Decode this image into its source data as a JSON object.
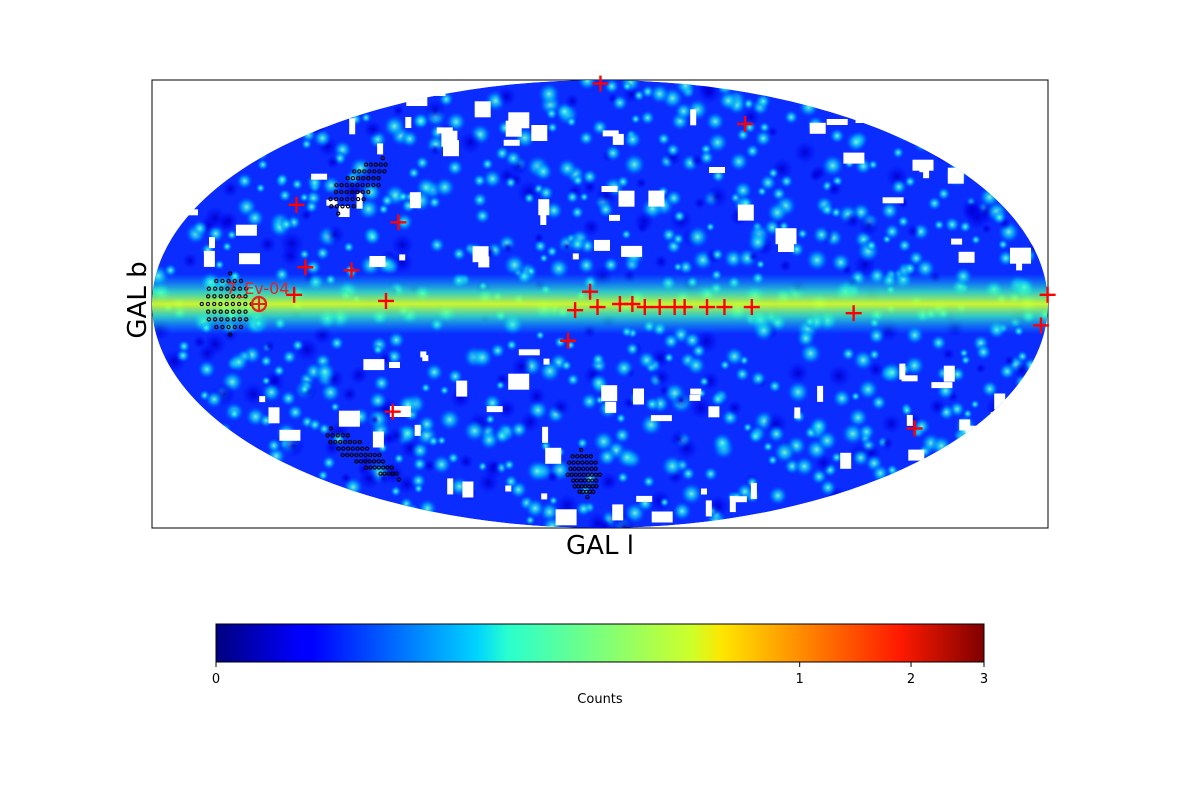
{
  "chart_data": {
    "type": "heatmap",
    "projection": "mollweide",
    "coordinate_system": "galactic",
    "xlabel": "GAL l",
    "ylabel": "GAL b",
    "colormap": "jet",
    "colorbar": {
      "label": "Counts",
      "scale": "nonlinear",
      "tick_labels": [
        "0",
        "1",
        "2",
        "3"
      ],
      "tick_values": [
        0,
        1,
        2,
        3
      ],
      "tick_fraction": [
        0.0,
        0.76,
        0.905,
        1.0
      ]
    },
    "frame": true,
    "grid": false,
    "sources": [
      {
        "l": -1,
        "b": 86
      },
      {
        "l": -98,
        "b": 64
      },
      {
        "l": 136,
        "b": 33
      },
      {
        "l": 87,
        "b": 27
      },
      {
        "l": 120,
        "b": 12
      },
      {
        "l": 101,
        "b": 11
      },
      {
        "l": 123,
        "b": 3
      },
      {
        "l": 86,
        "b": 1
      },
      {
        "l": 4,
        "b": 4
      },
      {
        "l": 10,
        "b": -2
      },
      {
        "l": 1,
        "b": -1
      },
      {
        "l": -8,
        "b": 0
      },
      {
        "l": -13,
        "b": 0
      },
      {
        "l": -18,
        "b": -1
      },
      {
        "l": -24,
        "b": -1
      },
      {
        "l": -30,
        "b": -1
      },
      {
        "l": -34,
        "b": -1
      },
      {
        "l": -43,
        "b": -1
      },
      {
        "l": -50,
        "b": -1
      },
      {
        "l": -61,
        "b": -1
      },
      {
        "l": -102,
        "b": -3
      },
      {
        "l": -180,
        "b": 3
      },
      {
        "l": 13,
        "b": -12
      },
      {
        "l": 95,
        "b": -36
      },
      {
        "l": -178,
        "b": -7
      },
      {
        "l": -152,
        "b": -42
      }
    ],
    "target": {
      "label": "7_Ev-04",
      "l": 137,
      "b": 0
    },
    "target_color": "#e8201e",
    "source_marker_color": "#ff0000",
    "error_region_color": "#000000",
    "error_regions": [
      {
        "l": 115,
        "b": 40
      },
      {
        "l": 150,
        "b": 0
      },
      {
        "l": 130,
        "b": -52
      },
      {
        "l": 10,
        "b": -60
      }
    ]
  }
}
